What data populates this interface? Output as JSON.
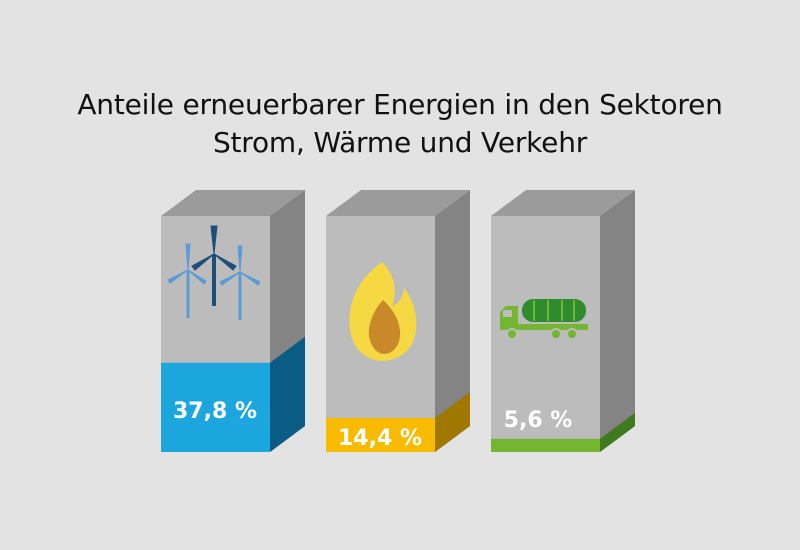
{
  "title_line1": "Anteile erneuerbarer Energien in den Sektoren",
  "title_line2": "Strom, Wärme und Verkehr",
  "chart_data": {
    "type": "bar",
    "categories": [
      "Strom",
      "Wärme",
      "Verkehr"
    ],
    "values": [
      37.8,
      14.4,
      5.6
    ],
    "value_labels": [
      "37,8 %",
      "14,4 %",
      "5,6 %"
    ],
    "unit": "%",
    "ylim": [
      0,
      100
    ],
    "icons": [
      "wind-turbines-icon",
      "flame-icon",
      "tanker-truck-icon"
    ],
    "colors": {
      "fill": [
        "#1ba6de",
        "#f9bb00",
        "#74b531"
      ],
      "fill_side": [
        "#0b5c84",
        "#a07800",
        "#3f7a1e"
      ],
      "box_front": "#bcbcbc",
      "box_side": "#848484",
      "box_top": "#9b9b9b",
      "label_wärme": "#ffffff"
    }
  }
}
